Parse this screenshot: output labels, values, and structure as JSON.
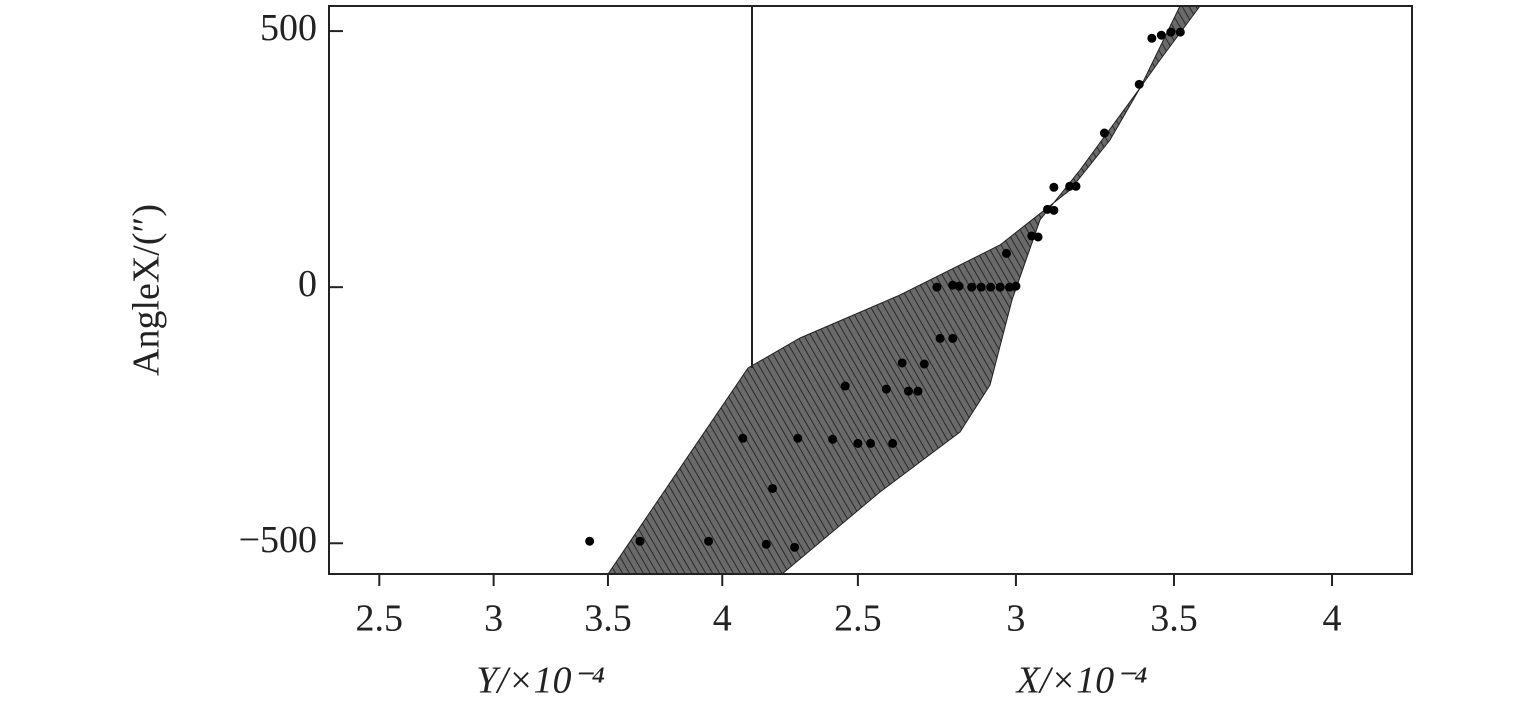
{
  "chart_data": [
    {
      "type": "scatter",
      "x_label": "Y/×10⁻⁴",
      "y_label": "AngleX/(″)",
      "xlim": [
        2.28,
        4.13
      ],
      "ylim": [
        -560,
        549
      ],
      "xticks": [
        2.5,
        3,
        3.5,
        4
      ],
      "yticks": [
        500,
        0,
        {
          "value": -500,
          "label": "−500"
        }
      ],
      "color": "#000000",
      "x": [
        3.42,
        3.64,
        3.94,
        4.09
      ],
      "values": [
        -496,
        -496,
        -496,
        -295
      ]
    },
    {
      "type": "scatter",
      "x_label": "X/×10⁻⁴",
      "xlim": [
        2.165,
        4.253
      ],
      "ylim": [
        -560,
        549
      ],
      "xticks": [
        2.5,
        3,
        3.5,
        4
      ],
      "color": "#000000",
      "x": [
        2.21,
        2.3,
        2.23,
        2.31,
        2.42,
        2.46,
        2.5,
        2.54,
        2.61,
        2.59,
        2.64,
        2.66,
        2.69,
        2.71,
        2.76,
        2.8,
        2.75,
        2.8,
        2.82,
        2.86,
        2.89,
        2.92,
        2.95,
        2.98,
        3.0,
        2.97,
        3.05,
        3.07,
        3.1,
        3.12,
        3.12,
        3.17,
        3.19,
        3.28,
        3.39,
        3.43,
        3.46,
        3.49,
        3.52
      ],
      "values": [
        -502,
        -508,
        -393,
        -295,
        -297,
        -193,
        -305,
        -305,
        -305,
        -199,
        -148,
        -203,
        -203,
        -150,
        -100,
        -100,
        0,
        4,
        2,
        0,
        0,
        0,
        0,
        0,
        2,
        66,
        100,
        98,
        152,
        150,
        195,
        197,
        197,
        301,
        396,
        486,
        492,
        498,
        498
      ]
    }
  ]
}
